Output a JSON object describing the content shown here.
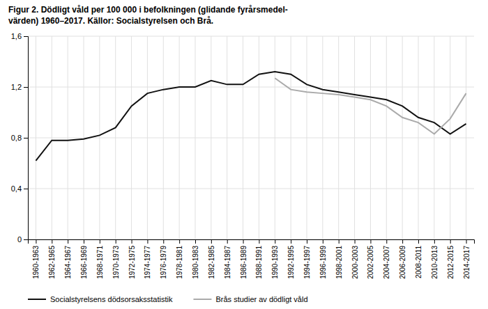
{
  "chart_data": {
    "type": "line",
    "title": [
      "Figur 2. Dödligt våld per 100 000 i befolkningen (glidande fyrårsmedel-",
      "värden) 1960–2017. Källor: Socialstyrelsen och Brå."
    ],
    "categories": [
      "1960-1963",
      "1962-1965",
      "1964-1967",
      "1966-1969",
      "1968-1971",
      "1970-1973",
      "1972-1975",
      "1974-1977",
      "1976-1979",
      "1978-1981",
      "1980-1983",
      "1982-1985",
      "1984-1987",
      "1986-1989",
      "1988-1991",
      "1990-1993",
      "1992-1995",
      "1994-1997",
      "1996-1999",
      "1998-2001",
      "2000-2003",
      "2002-2005",
      "2004-2007",
      "2006-2009",
      "2008-2011",
      "2010-2013",
      "2012-2015",
      "2014-2017"
    ],
    "series": [
      {
        "name": "Socialstyrelsens dödsorsaksstatistik",
        "color": "#111111",
        "values": [
          0.62,
          0.78,
          0.78,
          0.79,
          0.82,
          0.88,
          1.05,
          1.15,
          1.18,
          1.2,
          1.2,
          1.25,
          1.22,
          1.22,
          1.3,
          1.32,
          1.3,
          1.22,
          1.18,
          1.16,
          1.14,
          1.12,
          1.1,
          1.05,
          0.96,
          0.92,
          0.83,
          0.91
        ]
      },
      {
        "name": "Brås studier av dödligt våld",
        "color": "#aaaaaa",
        "values": [
          null,
          null,
          null,
          null,
          null,
          null,
          null,
          null,
          null,
          null,
          null,
          null,
          null,
          null,
          null,
          1.27,
          1.18,
          1.16,
          1.15,
          1.14,
          1.12,
          1.1,
          1.05,
          0.96,
          0.92,
          0.83,
          0.95,
          1.15
        ]
      }
    ],
    "ylim": [
      0,
      1.6
    ],
    "yticks": [
      0,
      {
        "value": 0.4,
        "label": "0,4"
      },
      {
        "value": 0.8,
        "label": "0,8"
      },
      {
        "value": 1.2,
        "label": "1,2"
      },
      {
        "value": 1.6,
        "label": "1,6"
      }
    ],
    "grid": true,
    "legend": "bottom"
  }
}
